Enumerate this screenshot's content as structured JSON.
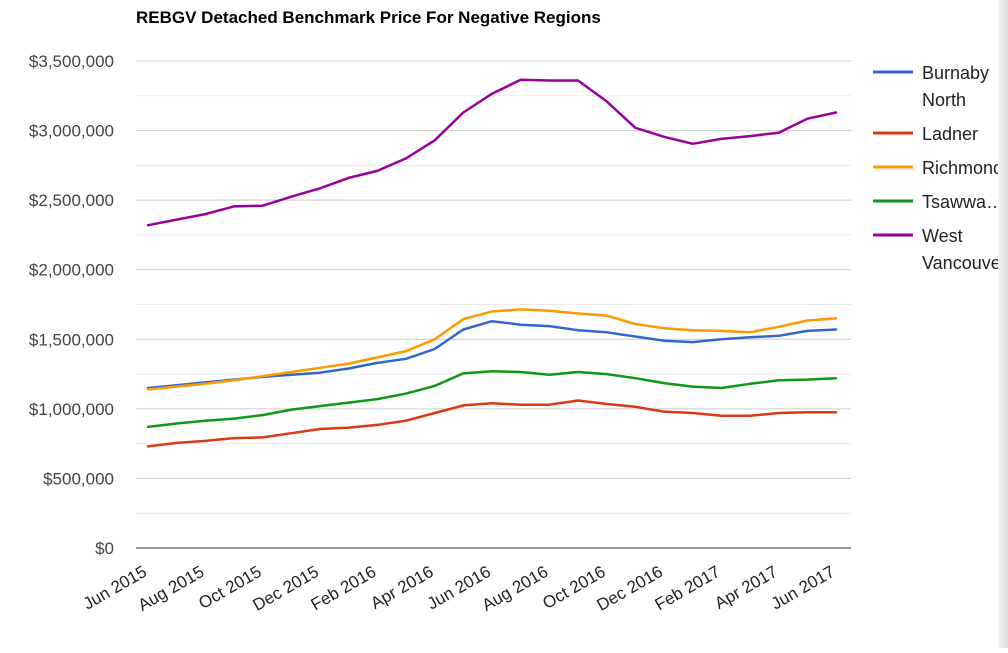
{
  "chart_data": {
    "type": "line",
    "title": "REBGV Detached Benchmark Price For Negative Regions",
    "xlabel": "",
    "ylabel": "",
    "ylim": [
      0,
      3500000
    ],
    "y_ticks": [
      0,
      500000,
      1000000,
      1500000,
      2000000,
      2500000,
      3000000,
      3500000
    ],
    "y_tick_labels": [
      "$0",
      "$500,000",
      "$1,000,000",
      "$1,500,000",
      "$2,000,000",
      "$2,500,000",
      "$3,000,000",
      "$3,500,000"
    ],
    "gridlines": true,
    "legend_position": "right",
    "x_categories": [
      "Jun 2015",
      "Jul 2015",
      "Aug 2015",
      "Sep 2015",
      "Oct 2015",
      "Nov 2015",
      "Dec 2015",
      "Jan 2016",
      "Feb 2016",
      "Mar 2016",
      "Apr 2016",
      "May 2016",
      "Jun 2016",
      "Jul 2016",
      "Aug 2016",
      "Sep 2016",
      "Oct 2016",
      "Nov 2016",
      "Dec 2016",
      "Jan 2017",
      "Feb 2017",
      "Mar 2017",
      "Apr 2017",
      "May 2017",
      "Jun 2017"
    ],
    "x_tick_labels": [
      "Jun 2015",
      "Aug 2015",
      "Oct 2015",
      "Dec 2015",
      "Feb 2016",
      "Apr 2016",
      "Jun 2016",
      "Aug 2016",
      "Oct 2016",
      "Dec 2016",
      "Feb 2017",
      "Apr 2017",
      "Jun 2017"
    ],
    "series": [
      {
        "name": "Burnaby North",
        "legend_lines": [
          "Burnaby",
          "North"
        ],
        "color": "#3366cc",
        "values": [
          1150000,
          1170000,
          1190000,
          1210000,
          1230000,
          1245000,
          1260000,
          1290000,
          1330000,
          1360000,
          1430000,
          1570000,
          1630000,
          1605000,
          1595000,
          1565000,
          1550000,
          1520000,
          1490000,
          1480000,
          1500000,
          1515000,
          1525000,
          1560000,
          1570000
        ]
      },
      {
        "name": "Ladner",
        "legend_lines": [
          "Ladner"
        ],
        "color": "#dc3912",
        "values": [
          730000,
          755000,
          770000,
          790000,
          795000,
          825000,
          855000,
          865000,
          885000,
          915000,
          970000,
          1025000,
          1040000,
          1030000,
          1030000,
          1060000,
          1035000,
          1015000,
          980000,
          970000,
          950000,
          950000,
          970000,
          975000,
          975000
        ]
      },
      {
        "name": "Richmond",
        "legend_lines": [
          "Richmond"
        ],
        "color": "#ff9900",
        "values": [
          1140000,
          1160000,
          1180000,
          1205000,
          1235000,
          1265000,
          1295000,
          1325000,
          1370000,
          1415000,
          1500000,
          1645000,
          1700000,
          1715000,
          1705000,
          1685000,
          1670000,
          1610000,
          1580000,
          1565000,
          1560000,
          1550000,
          1590000,
          1635000,
          1650000
        ]
      },
      {
        "name": "Tsawwassen",
        "legend_lines": [
          "Tsawwa…"
        ],
        "color": "#109618",
        "values": [
          870000,
          895000,
          915000,
          930000,
          955000,
          995000,
          1020000,
          1045000,
          1070000,
          1110000,
          1165000,
          1255000,
          1270000,
          1265000,
          1245000,
          1265000,
          1250000,
          1220000,
          1185000,
          1160000,
          1150000,
          1180000,
          1205000,
          1210000,
          1220000
        ]
      },
      {
        "name": "West Vancouver",
        "legend_lines": [
          "West",
          "Vancouve"
        ],
        "color": "#990099",
        "values": [
          2320000,
          2360000,
          2400000,
          2455000,
          2460000,
          2525000,
          2585000,
          2660000,
          2710000,
          2800000,
          2930000,
          3130000,
          3265000,
          3365000,
          3360000,
          3360000,
          3210000,
          3020000,
          2955000,
          2905000,
          2940000,
          2960000,
          2985000,
          3085000,
          3130000
        ]
      }
    ]
  }
}
